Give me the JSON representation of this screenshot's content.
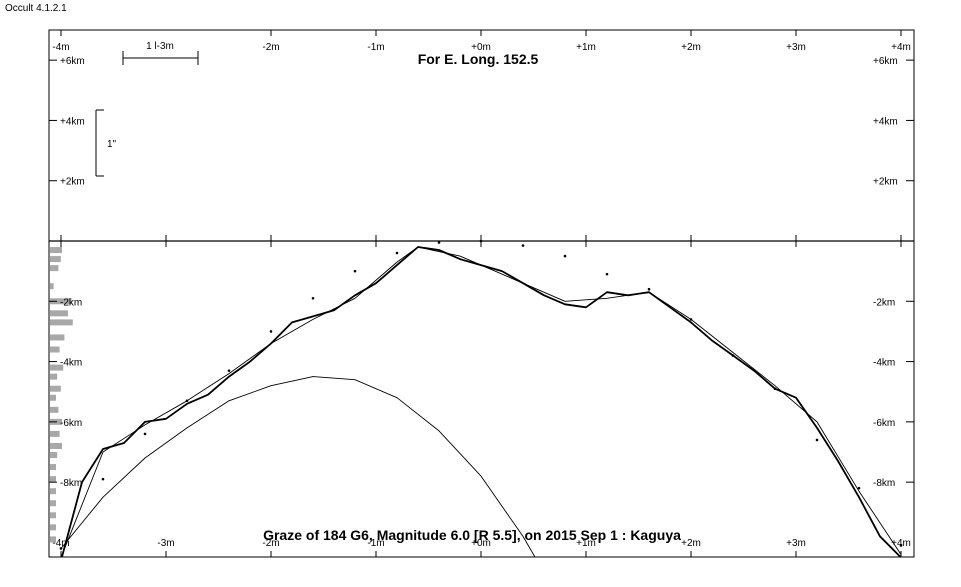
{
  "app": {
    "version": "Occult 4.1.2.1"
  },
  "chart_data": {
    "type": "line",
    "title": "For E. Long. 152.5",
    "footer": "Graze of  184 G6,  Magnitude 6.0 [R 5.5],  on 2015 Sep  1  :  Kaguya",
    "xlabels": [
      "-4m",
      "-3m",
      "-2m",
      "-1m",
      "+0m",
      "+1m",
      "+2m",
      "+3m",
      "+4m"
    ],
    "top_xlabels": [
      "-4m",
      "-2m",
      "-1m",
      "+0m",
      "+1m",
      "+2m",
      "+3m",
      "+4m"
    ],
    "upper_ylabels": [
      "+6km",
      "+4km",
      "+2km"
    ],
    "lower_ylabels": [
      "-2km",
      "-4km",
      "-6km",
      "-8km"
    ],
    "xlim": [
      -4,
      4
    ],
    "ylim": [
      -10.5,
      7
    ],
    "scale_bar_time": "1 l-3m",
    "scale_bar_angle": "1\"",
    "colors": {
      "profile": "#000000",
      "histogram": "#a8a8a8",
      "axes": "#000000"
    },
    "series": [
      {
        "style": "profile",
        "x": [
          -4.0,
          -3.8,
          -3.6,
          -3.4,
          -3.2,
          -3.0,
          -2.8,
          -2.6,
          -2.4,
          -2.2,
          -2.0,
          -1.8,
          -1.6,
          -1.4,
          -1.2,
          -1.0,
          -0.8,
          -0.6,
          -0.4,
          -0.2,
          0.0,
          0.2,
          0.4,
          0.6,
          0.8,
          1.0,
          1.2,
          1.4,
          1.6,
          1.8,
          2.0,
          2.2,
          2.4,
          2.6,
          2.8,
          3.0,
          3.2,
          3.4,
          3.6,
          3.8,
          4.0
        ],
        "y": [
          -10.6,
          -8.0,
          -6.9,
          -6.7,
          -6.0,
          -5.9,
          -5.4,
          -5.1,
          -4.5,
          -4.0,
          -3.4,
          -2.7,
          -2.5,
          -2.3,
          -1.8,
          -1.4,
          -0.8,
          -0.2,
          -0.3,
          -0.6,
          -0.8,
          -1.0,
          -1.4,
          -1.8,
          -2.1,
          -2.2,
          -1.7,
          -1.8,
          -1.7,
          -2.2,
          -2.7,
          -3.3,
          -3.8,
          -4.3,
          -4.9,
          -5.2,
          -6.2,
          -7.3,
          -8.5,
          -9.8,
          -10.5
        ]
      },
      {
        "style": "smoothed",
        "x": [
          -4.0,
          -3.6,
          -3.2,
          -2.8,
          -2.4,
          -2.0,
          -1.6,
          -1.2,
          -0.8,
          -0.6,
          -0.2,
          0.0,
          0.4,
          0.8,
          1.2,
          1.6,
          2.0,
          2.4,
          2.8,
          3.2,
          3.6,
          4.0
        ],
        "y": [
          -10.5,
          -7.0,
          -6.1,
          -5.3,
          -4.4,
          -3.4,
          -2.6,
          -1.9,
          -0.7,
          -0.2,
          -0.5,
          -0.8,
          -1.4,
          -2.0,
          -1.9,
          -1.7,
          -2.6,
          -3.7,
          -4.8,
          -6.0,
          -8.3,
          -10.4
        ]
      },
      {
        "style": "dotted",
        "x": [
          -4.0,
          -3.6,
          -3.2,
          -2.8,
          -2.4,
          -2.0,
          -1.6,
          -1.2,
          -0.8,
          -0.4,
          0.0,
          0.4,
          0.8,
          1.2,
          1.6,
          2.0,
          2.4,
          2.8,
          3.2,
          3.6,
          4.0
        ],
        "y": [
          -10.2,
          -7.9,
          -6.4,
          -5.3,
          -4.3,
          -3.0,
          -1.9,
          -1.0,
          -0.4,
          -0.05,
          0.0,
          -0.15,
          -0.5,
          -1.1,
          -1.6,
          -2.6,
          -3.8,
          -4.9,
          -6.6,
          -8.2,
          -10.1
        ]
      },
      {
        "style": "limb-arc",
        "x": [
          -4.0,
          -3.6,
          -3.2,
          -2.8,
          -2.4,
          -2.0,
          -1.6,
          -1.2,
          -0.8,
          -0.4,
          0.0,
          0.4,
          0.6
        ],
        "y": [
          -10.2,
          -8.5,
          -7.2,
          -6.2,
          -5.3,
          -4.8,
          -4.5,
          -4.6,
          -5.2,
          -6.3,
          -7.8,
          -9.8,
          -11.0
        ]
      }
    ],
    "histogram": {
      "y": [
        -0.3,
        -0.6,
        -0.9,
        -1.5,
        -2.0,
        -2.4,
        -2.7,
        -3.2,
        -3.6,
        -4.2,
        -4.5,
        -4.9,
        -5.2,
        -5.6,
        -6.0,
        -6.4,
        -6.8,
        -7.1,
        -7.5,
        -7.9,
        -8.3,
        -8.7,
        -9.1,
        -9.5,
        -9.9
      ],
      "values": [
        1.0,
        0.9,
        0.7,
        0.3,
        1.8,
        1.5,
        1.9,
        1.2,
        0.8,
        1.1,
        0.6,
        0.9,
        0.5,
        0.7,
        1.0,
        0.8,
        1.0,
        0.6,
        0.5,
        0.5,
        0.5,
        0.5,
        0.5,
        0.5,
        0.5
      ]
    }
  }
}
